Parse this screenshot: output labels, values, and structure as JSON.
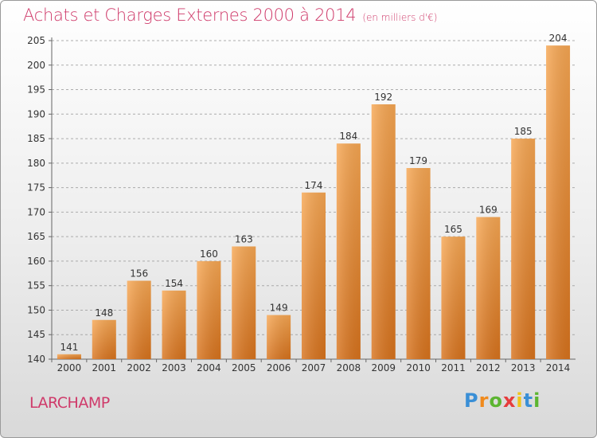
{
  "title": "Achats et Charges Externes 2000 à 2014",
  "subtitle": "(en milliers d'€)",
  "commune": "LARCHAMP",
  "logo": {
    "letters": [
      "P",
      "r",
      "o",
      "x",
      "i",
      "t",
      "i"
    ],
    "colors": [
      "#3a8fd6",
      "#f08a1c",
      "#5cb531",
      "#e63c3c",
      "#f0c419",
      "#3a8fd6",
      "#5cb531"
    ]
  },
  "colors": {
    "title": "#cf3a6a",
    "bar_light": "#f7a753",
    "bar_dark": "#d8731d",
    "grid": "#9a9a9a"
  },
  "chart_data": {
    "type": "bar",
    "title": "Achats et Charges Externes 2000 à 2014",
    "subtitle": "(en milliers d'€)",
    "categories": [
      "2000",
      "2001",
      "2002",
      "2003",
      "2004",
      "2005",
      "2006",
      "2007",
      "2008",
      "2009",
      "2010",
      "2011",
      "2012",
      "2013",
      "2014"
    ],
    "values": [
      141,
      148,
      156,
      154,
      160,
      163,
      149,
      174,
      184,
      192,
      179,
      165,
      169,
      185,
      204
    ],
    "ylim": [
      140,
      205
    ],
    "yticks": [
      140,
      145,
      150,
      155,
      160,
      165,
      170,
      175,
      180,
      185,
      190,
      195,
      200,
      205
    ],
    "grid": true,
    "xlabel": "",
    "ylabel": ""
  }
}
